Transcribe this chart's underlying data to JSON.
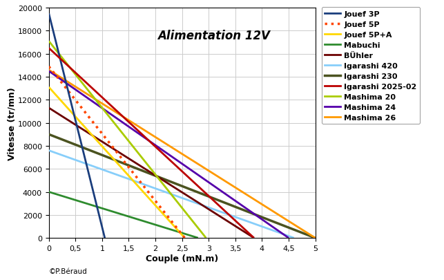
{
  "title": "Alimentation 12V",
  "xlabel": "Couple (mN.m)",
  "ylabel": "Vitesse (tr/mn)",
  "xlim": [
    0,
    5
  ],
  "ylim": [
    0,
    20000
  ],
  "copyright": "©P.Béraud",
  "motors": [
    {
      "name": "Jouef 3P",
      "v0": 19500,
      "t_stall": 1.05,
      "color": "#1a3d7c",
      "linestyle": "-",
      "linewidth": 2.0,
      "zorder": 10
    },
    {
      "name": "Jouef 5P",
      "v0": 14900,
      "t_stall": 2.55,
      "color": "#ff4500",
      "linestyle": ":",
      "linewidth": 2.5,
      "zorder": 9
    },
    {
      "name": "Jouef 5P+A",
      "v0": 13100,
      "t_stall": 2.55,
      "color": "#ffd700",
      "linestyle": "-",
      "linewidth": 2.0,
      "zorder": 8
    },
    {
      "name": "Mabuchi",
      "v0": 4000,
      "t_stall": 2.8,
      "color": "#2e8b2e",
      "linestyle": "-",
      "linewidth": 2.0,
      "zorder": 7
    },
    {
      "name": "BÜhler",
      "v0": 11300,
      "t_stall": 3.85,
      "color": "#6b0000",
      "linestyle": "-",
      "linewidth": 2.0,
      "zorder": 6
    },
    {
      "name": "Igarashi 420",
      "v0": 7600,
      "t_stall": 4.6,
      "color": "#87cefa",
      "linestyle": "-",
      "linewidth": 2.0,
      "zorder": 5
    },
    {
      "name": "Igarashi 230",
      "v0": 9000,
      "t_stall": 5.0,
      "color": "#4b5320",
      "linestyle": "-",
      "linewidth": 2.5,
      "zorder": 4
    },
    {
      "name": "Igarashi 2025-02",
      "v0": 16500,
      "t_stall": 3.85,
      "color": "#bb0000",
      "linestyle": "-",
      "linewidth": 2.0,
      "zorder": 11
    },
    {
      "name": "Mashima 20",
      "v0": 17100,
      "t_stall": 2.95,
      "color": "#aacc00",
      "linestyle": "-",
      "linewidth": 2.0,
      "zorder": 8
    },
    {
      "name": "Mashima 24",
      "v0": 14500,
      "t_stall": 4.5,
      "color": "#5500aa",
      "linestyle": "-",
      "linewidth": 2.0,
      "zorder": 7
    },
    {
      "name": "Mashima 26",
      "v0": 14600,
      "t_stall": 5.0,
      "color": "#ff9900",
      "linestyle": "-",
      "linewidth": 2.0,
      "zorder": 6
    }
  ],
  "background_color": "#ffffff",
  "grid_color": "#cccccc",
  "title_fontsize": 12,
  "axis_label_fontsize": 9,
  "tick_fontsize": 8,
  "legend_fontsize": 8
}
